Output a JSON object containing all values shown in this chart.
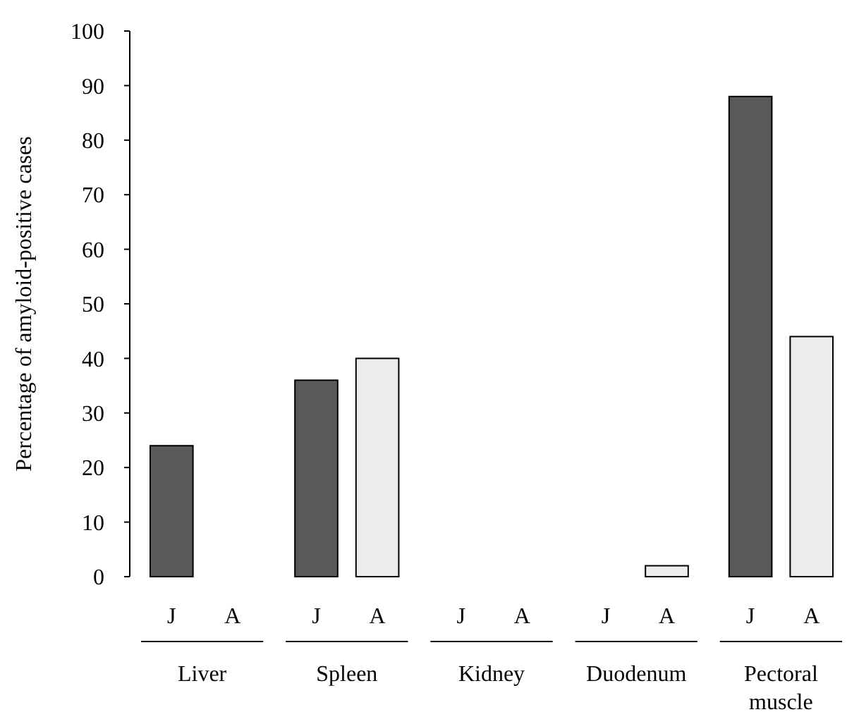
{
  "chart_data": {
    "type": "bar",
    "ylabel": "Percentage of amyloid-positive cases",
    "categories": [
      "Liver",
      "Spleen",
      "Kidney",
      "Duodenum",
      "Pectoral muscle"
    ],
    "series": [
      {
        "name": "J",
        "color": "#595959",
        "values": [
          24,
          36,
          0,
          0,
          88
        ]
      },
      {
        "name": "A",
        "color": "#ececec",
        "values": [
          0,
          40,
          0,
          2,
          44
        ]
      }
    ],
    "ylim": [
      0,
      100
    ],
    "yticks": [
      0,
      10,
      20,
      30,
      40,
      50,
      60,
      70,
      80,
      90,
      100
    ],
    "grid": false
  }
}
